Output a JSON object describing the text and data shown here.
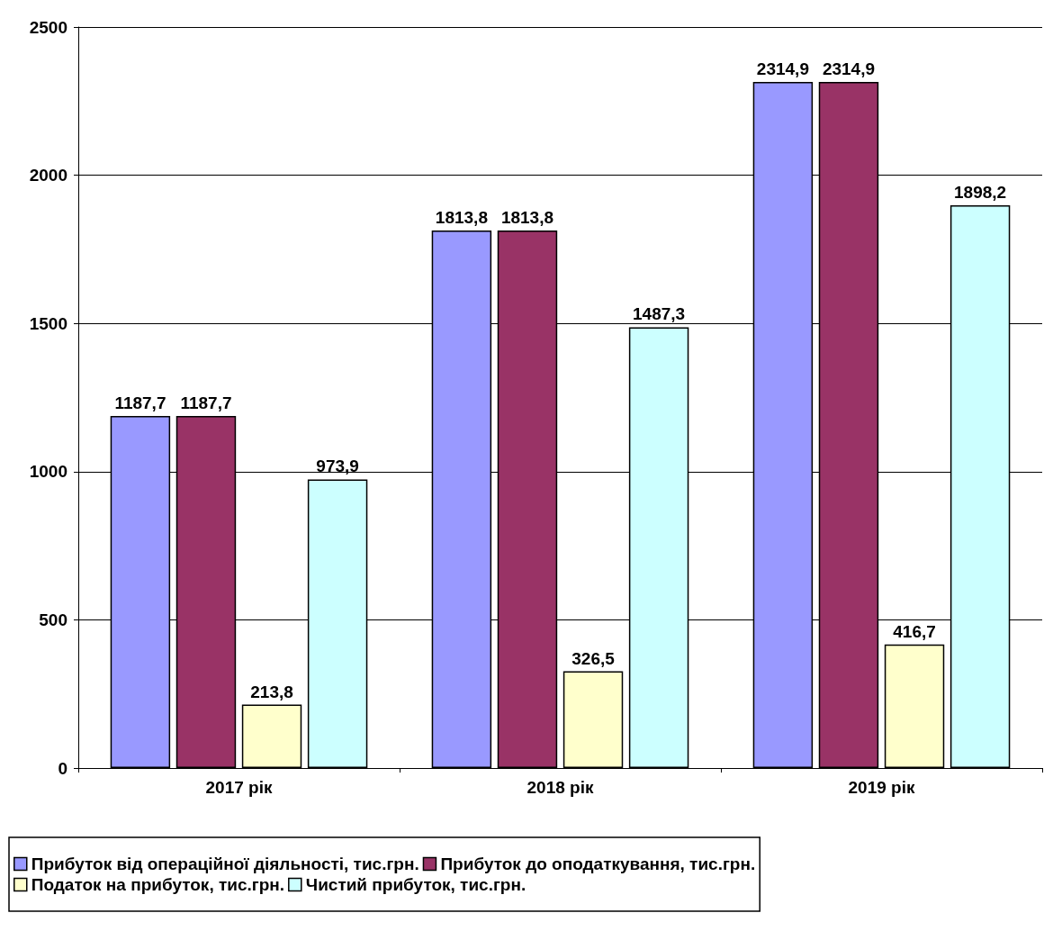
{
  "chart_data": {
    "type": "bar",
    "categories": [
      "2017 рік",
      "2018 рік",
      "2019 рік"
    ],
    "series": [
      {
        "name": "Прибуток від операційної діяльності, тис.грн.",
        "color": "#9999ff",
        "values": [
          1187.7,
          1813.8,
          2314.9
        ],
        "value_labels": [
          "1187,7",
          "1813,8",
          "2314,9"
        ]
      },
      {
        "name": "Прибуток до оподаткування, тис.грн.",
        "color": "#993366",
        "values": [
          1187.7,
          1813.8,
          2314.9
        ],
        "value_labels": [
          "1187,7",
          "1813,8",
          "2314,9"
        ]
      },
      {
        "name": "Податок на прибуток, тис.грн.",
        "color": "#ffffcc",
        "values": [
          213.8,
          326.5,
          416.7
        ],
        "value_labels": [
          "213,8",
          "326,5",
          "416,7"
        ]
      },
      {
        "name": "Чистий прибуток, тис.грн.",
        "color": "#ccffff",
        "values": [
          973.9,
          1487.3,
          1898.2
        ],
        "value_labels": [
          "973,9",
          "1487,3",
          "1898,2"
        ]
      }
    ],
    "ylim": [
      0,
      2500
    ],
    "yticks": [
      0,
      500,
      1000,
      1500,
      2000,
      2500
    ],
    "grid": "y",
    "legend": "bottom"
  }
}
